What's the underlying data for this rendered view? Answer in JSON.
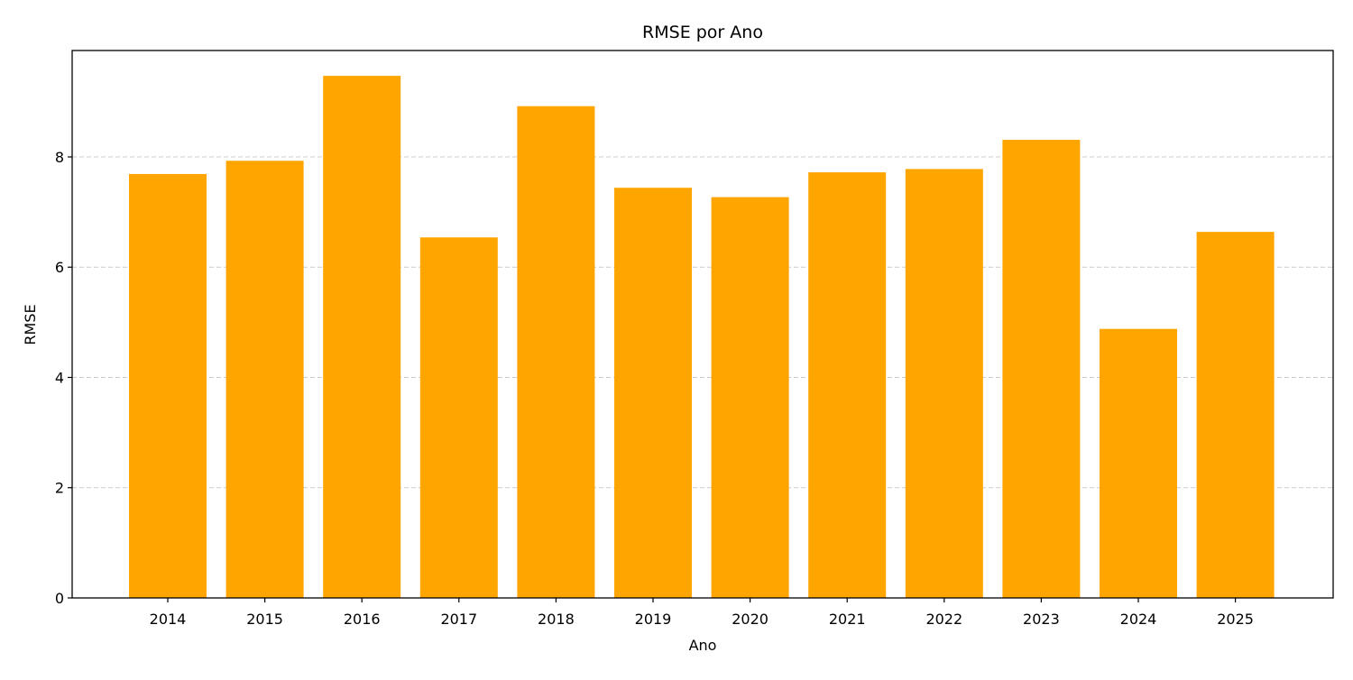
{
  "chart_data": {
    "type": "bar",
    "title": "RMSE por Ano",
    "xlabel": "Ano",
    "ylabel": "RMSE",
    "categories": [
      "2014",
      "2015",
      "2016",
      "2017",
      "2018",
      "2019",
      "2020",
      "2021",
      "2022",
      "2023",
      "2024",
      "2025"
    ],
    "values": [
      7.69,
      7.93,
      9.47,
      6.54,
      8.92,
      7.44,
      7.27,
      7.72,
      7.78,
      8.31,
      4.88,
      6.64
    ],
    "ylim": [
      0,
      9.93
    ],
    "yticks": [
      0,
      2,
      4,
      6,
      8
    ],
    "ytick_labels": [
      "0",
      "2",
      "4",
      "6",
      "8"
    ],
    "grid": "y-dashed",
    "bar_color": "#ffa500",
    "grid_color": "#cccccc",
    "axis_color": "#000000"
  }
}
